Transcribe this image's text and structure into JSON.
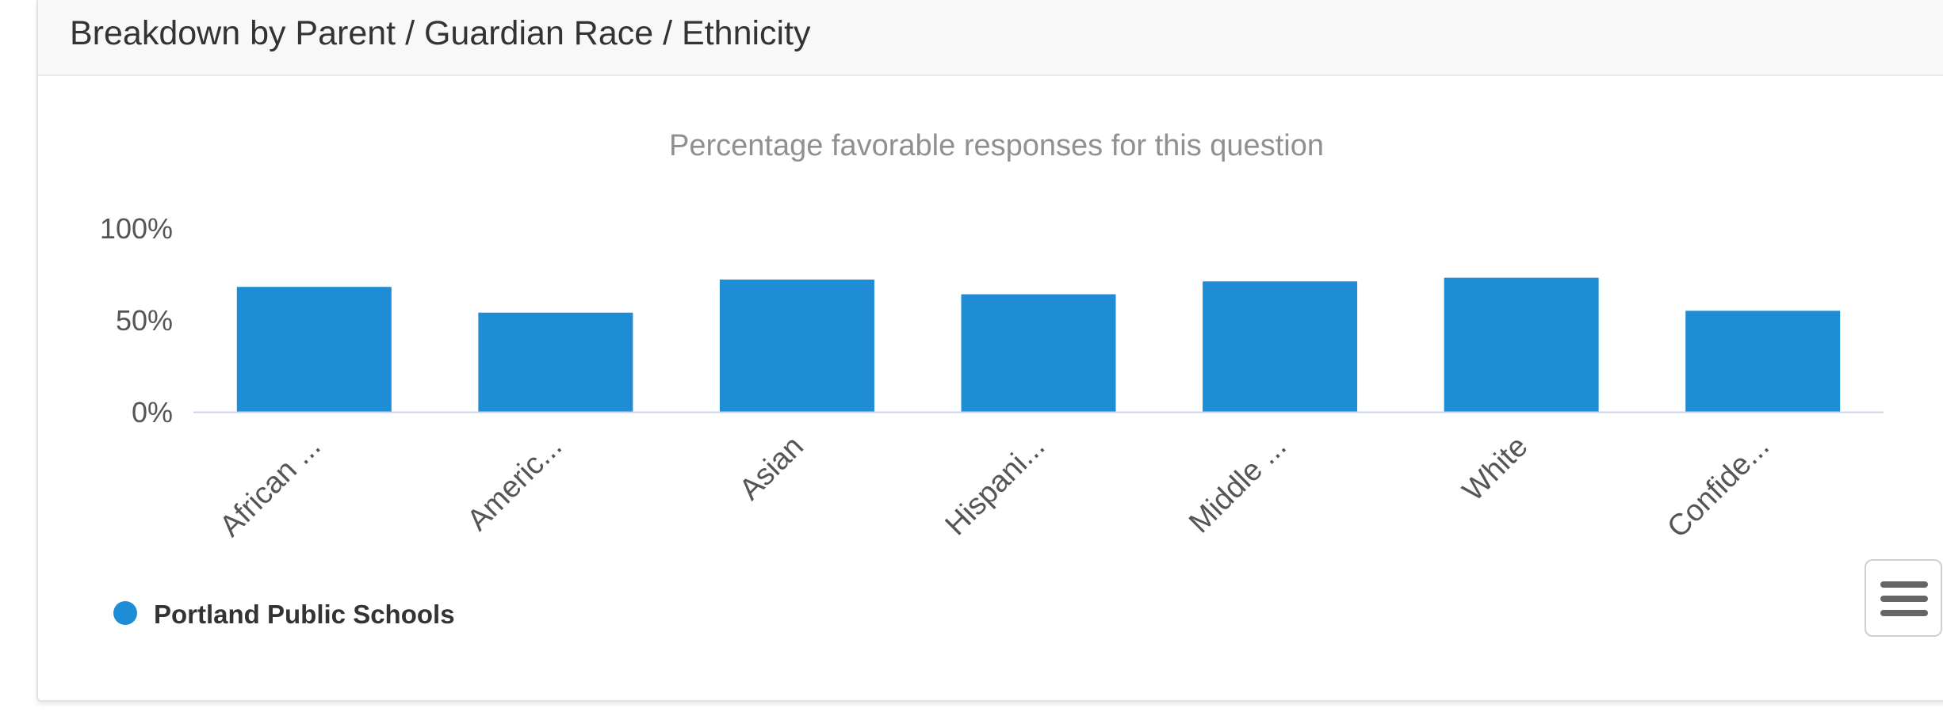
{
  "card": {
    "title": "Breakdown by Parent / Guardian Race / Ethnicity"
  },
  "colors": {
    "series": "#1f8dd6",
    "axis_line": "#ccd6eb",
    "subtitle": "#909090",
    "tick_label": "#555555",
    "legend_text": "#333333"
  },
  "menu": {
    "icon": "hamburger-menu-icon"
  },
  "chart_data": {
    "type": "bar",
    "subtitle": "Percentage favorable responses for this question",
    "categories": [
      "African ...",
      "Americ...",
      "Asian",
      "Hispani...",
      "Middle ...",
      "White",
      "Confide..."
    ],
    "series": [
      {
        "name": "Portland Public Schools",
        "values": [
          68,
          54,
          72,
          64,
          71,
          73,
          55
        ]
      }
    ],
    "y_ticks": [
      "0%",
      "50%",
      "100%"
    ],
    "ylim": [
      0,
      100
    ],
    "xlabel": "",
    "ylabel": "",
    "grid": false,
    "legend_position": "bottom-left"
  }
}
